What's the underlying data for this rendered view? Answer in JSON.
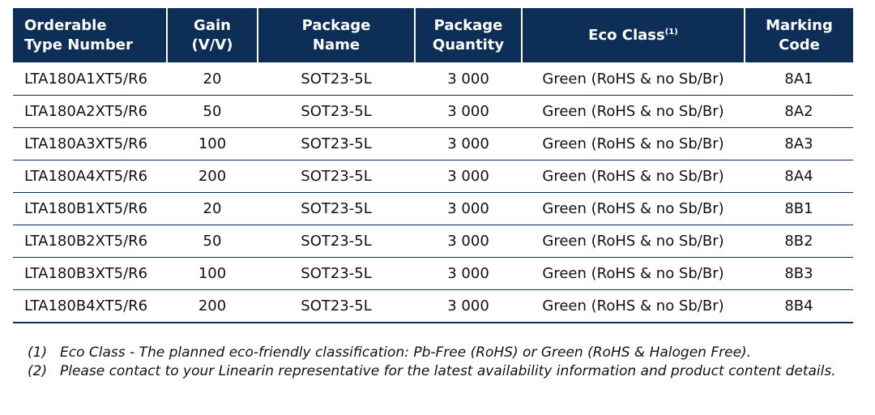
{
  "table": {
    "headers": {
      "type_number": [
        "Orderable",
        "Type Number"
      ],
      "gain": [
        "Gain",
        "(V/V)"
      ],
      "package_name": [
        "Package",
        "Name"
      ],
      "package_quantity": [
        "Package",
        "Quantity"
      ],
      "eco_class": "Eco Class",
      "eco_class_sup": "(1)",
      "marking_code": [
        "Marking",
        "Code"
      ]
    },
    "rows": [
      {
        "type": "LTA180A1XT5/R6",
        "gain": "20",
        "package": "SOT23-5L",
        "qty": "3 000",
        "eco": "Green (RoHS & no Sb/Br)",
        "mark": "8A1"
      },
      {
        "type": "LTA180A2XT5/R6",
        "gain": "50",
        "package": "SOT23-5L",
        "qty": "3 000",
        "eco": "Green (RoHS & no Sb/Br)",
        "mark": "8A2"
      },
      {
        "type": "LTA180A3XT5/R6",
        "gain": "100",
        "package": "SOT23-5L",
        "qty": "3 000",
        "eco": "Green (RoHS & no Sb/Br)",
        "mark": "8A3"
      },
      {
        "type": "LTA180A4XT5/R6",
        "gain": "200",
        "package": "SOT23-5L",
        "qty": "3 000",
        "eco": "Green (RoHS & no Sb/Br)",
        "mark": "8A4"
      },
      {
        "type": "LTA180B1XT5/R6",
        "gain": "20",
        "package": "SOT23-5L",
        "qty": "3 000",
        "eco": "Green (RoHS & no Sb/Br)",
        "mark": "8B1"
      },
      {
        "type": "LTA180B2XT5/R6",
        "gain": "50",
        "package": "SOT23-5L",
        "qty": "3 000",
        "eco": "Green (RoHS & no Sb/Br)",
        "mark": "8B2"
      },
      {
        "type": "LTA180B3XT5/R6",
        "gain": "100",
        "package": "SOT23-5L",
        "qty": "3 000",
        "eco": "Green (RoHS & no Sb/Br)",
        "mark": "8B3"
      },
      {
        "type": "LTA180B4XT5/R6",
        "gain": "200",
        "package": "SOT23-5L",
        "qty": "3 000",
        "eco": "Green (RoHS & no Sb/Br)",
        "mark": "8B4"
      }
    ]
  },
  "notes": [
    {
      "num": "(1)",
      "text": "Eco Class - The planned eco-friendly classification: Pb-Free (RoHS) or Green (RoHS & Halogen Free)."
    },
    {
      "num": "(2)",
      "text": "Please contact to your Linearin representative for the latest availability information and product content details."
    }
  ],
  "colors": {
    "header_bg": "#0d2f57",
    "header_text": "#ffffff",
    "rule": "#0d2f57"
  }
}
